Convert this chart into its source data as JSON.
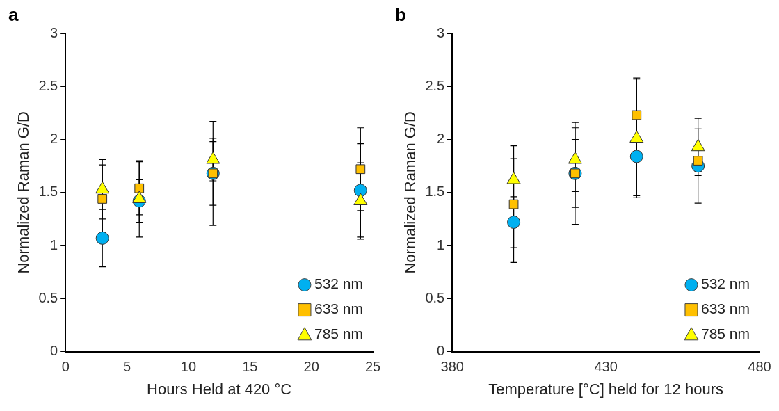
{
  "chart_data": [
    {
      "type": "scatter",
      "title": "a",
      "xlabel": "Hours Held at 420 °C",
      "ylabel": "Normalized Raman G/D",
      "xlim": [
        0,
        25
      ],
      "xticks": [
        0,
        5,
        10,
        15,
        20,
        25
      ],
      "ylim": [
        0,
        3
      ],
      "yticks": [
        0,
        0.5,
        1,
        1.5,
        2,
        2.5,
        3
      ],
      "grid": false,
      "legend": "bottom right",
      "series": [
        {
          "name": "532 nm",
          "color": "#00b0f0",
          "marker": "circle",
          "x": [
            3,
            6,
            12,
            24
          ],
          "values": [
            1.07,
            1.42,
            1.68,
            1.52
          ],
          "errors": [
            0.27,
            0.2,
            0.3,
            0.44
          ]
        },
        {
          "name": "633 nm",
          "color": "#ffc000",
          "marker": "square",
          "x": [
            3,
            6,
            12,
            24
          ],
          "values": [
            1.44,
            1.54,
            1.68,
            1.72
          ],
          "errors": [
            0.32,
            0.25,
            0.49,
            0.39
          ]
        },
        {
          "name": "785 nm",
          "color": "#ffff00",
          "marker": "triangle",
          "x": [
            3,
            6,
            12,
            24
          ],
          "values": [
            1.53,
            1.44,
            1.81,
            1.42
          ],
          "errors": [
            0.28,
            0.36,
            0.2,
            0.36
          ]
        }
      ]
    },
    {
      "type": "scatter",
      "title": "b",
      "xlabel": "Temperature [°C] held for 12 hours",
      "ylabel": "Normalized Raman G/D",
      "xlim": [
        380,
        480
      ],
      "xticks": [
        380,
        430,
        480
      ],
      "ylim": [
        0,
        3
      ],
      "yticks": [
        0,
        0.5,
        1,
        1.5,
        2,
        2.5,
        3
      ],
      "grid": false,
      "legend": "bottom right",
      "series": [
        {
          "name": "532 nm",
          "color": "#00b0f0",
          "marker": "circle",
          "x": [
            400,
            420,
            440,
            460
          ],
          "values": [
            1.22,
            1.68,
            1.84,
            1.75
          ],
          "errors": [
            0.24,
            0.32,
            0.37,
            0.35
          ]
        },
        {
          "name": "633 nm",
          "color": "#ffc000",
          "marker": "square",
          "x": [
            400,
            420,
            440,
            460
          ],
          "values": [
            1.39,
            1.68,
            2.23,
            1.8
          ],
          "errors": [
            0.55,
            0.48,
            0.35,
            0.1
          ]
        },
        {
          "name": "785 nm",
          "color": "#ffff00",
          "marker": "triangle",
          "x": [
            400,
            420,
            440,
            460
          ],
          "values": [
            1.62,
            1.81,
            2.01,
            1.93
          ],
          "errors": [
            0.2,
            0.3,
            0.56,
            0.27
          ]
        }
      ]
    }
  ]
}
